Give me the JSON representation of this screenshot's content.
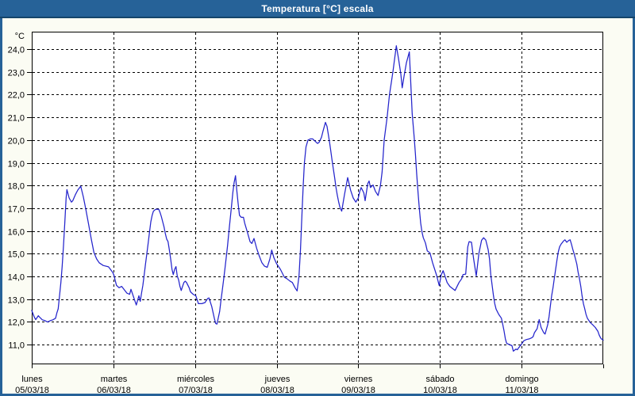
{
  "window": {
    "title": "Temperatura [°C] escala"
  },
  "colors": {
    "titlebar": "#266298",
    "titlebar_edge": "#15456b",
    "window_bg": "#fbfcf3",
    "plot_bg": "#ffffff",
    "frame": "#000000",
    "grid": "#000000",
    "line": "#2424cc",
    "text": "#000000",
    "title_text": "#ffffff"
  },
  "chart_data": {
    "type": "line",
    "title": "Temperatura [°C] escala",
    "ylabel": "°C",
    "grid": true,
    "legend_position": "none",
    "y_domain": [
      10.13,
      24.77
    ],
    "x_domain_hours": [
      0,
      168
    ],
    "hours_per_day": 24,
    "y_ticks": [
      {
        "v": 11,
        "label": "11,0"
      },
      {
        "v": 12,
        "label": "12,0"
      },
      {
        "v": 13,
        "label": "13,0"
      },
      {
        "v": 14,
        "label": "14,0"
      },
      {
        "v": 15,
        "label": "15,0"
      },
      {
        "v": 16,
        "label": "16,0"
      },
      {
        "v": 17,
        "label": "17,0"
      },
      {
        "v": 18,
        "label": "18,0"
      },
      {
        "v": 19,
        "label": "19,0"
      },
      {
        "v": 20,
        "label": "20,0"
      },
      {
        "v": 21,
        "label": "21,0"
      },
      {
        "v": 22,
        "label": "22,0"
      },
      {
        "v": 23,
        "label": "23,0"
      },
      {
        "v": 24,
        "label": "24,0"
      }
    ],
    "days": [
      {
        "name": "lunes",
        "date": "05/03/18"
      },
      {
        "name": "martes",
        "date": "06/03/18"
      },
      {
        "name": "miércoles",
        "date": "07/03/18"
      },
      {
        "name": "jueves",
        "date": "08/03/18"
      },
      {
        "name": "viernes",
        "date": "09/03/18"
      },
      {
        "name": "sábado",
        "date": "10/03/18"
      },
      {
        "name": "domingo",
        "date": "11/03/18"
      }
    ],
    "series": [
      {
        "name": "Temperatura",
        "unit": "°C",
        "points": [
          [
            0,
            12.5
          ],
          [
            0.77,
            12.2
          ],
          [
            1.17,
            12.1
          ],
          [
            1.94,
            12.27
          ],
          [
            2.33,
            12.2
          ],
          [
            3.1,
            12.09
          ],
          [
            3.9,
            12.05
          ],
          [
            4.67,
            11.99
          ],
          [
            5.44,
            12.05
          ],
          [
            6.23,
            12.09
          ],
          [
            7,
            12.16
          ],
          [
            7.4,
            12.4
          ],
          [
            7.77,
            12.57
          ],
          [
            8.17,
            13.15
          ],
          [
            8.56,
            13.73
          ],
          [
            8.94,
            14.43
          ],
          [
            9.33,
            15.36
          ],
          [
            9.73,
            16.4
          ],
          [
            10.1,
            17.45
          ],
          [
            10.34,
            17.82
          ],
          [
            11,
            17.45
          ],
          [
            11.67,
            17.27
          ],
          [
            12.06,
            17.33
          ],
          [
            12.83,
            17.6
          ],
          [
            13.53,
            17.8
          ],
          [
            14.4,
            17.97
          ],
          [
            15.17,
            17.5
          ],
          [
            15.94,
            16.92
          ],
          [
            16.73,
            16.28
          ],
          [
            17.5,
            15.64
          ],
          [
            18.27,
            15.06
          ],
          [
            19.06,
            14.77
          ],
          [
            19.83,
            14.6
          ],
          [
            21,
            14.48
          ],
          [
            22.56,
            14.42
          ],
          [
            23.72,
            14.19
          ],
          [
            24.11,
            14.08
          ],
          [
            24.9,
            13.61
          ],
          [
            25.67,
            13.5
          ],
          [
            26.44,
            13.56
          ],
          [
            28,
            13.26
          ],
          [
            28.77,
            13.21
          ],
          [
            29.17,
            13.43
          ],
          [
            30.73,
            12.74
          ],
          [
            31.5,
            13.15
          ],
          [
            31.9,
            12.9
          ],
          [
            32.27,
            13.26
          ],
          [
            32.67,
            13.61
          ],
          [
            33.06,
            14.08
          ],
          [
            33.44,
            14.54
          ],
          [
            33.83,
            15
          ],
          [
            34.23,
            15.47
          ],
          [
            34.6,
            15.93
          ],
          [
            35,
            16.4
          ],
          [
            35.39,
            16.69
          ],
          [
            35.77,
            16.87
          ],
          [
            36.4,
            16.95
          ],
          [
            37.33,
            16.95
          ],
          [
            37.73,
            16.81
          ],
          [
            38.1,
            16.63
          ],
          [
            38.5,
            16.4
          ],
          [
            38.9,
            16.17
          ],
          [
            39.27,
            15.88
          ],
          [
            39.67,
            15.64
          ],
          [
            40.06,
            15.53
          ],
          [
            40.44,
            15.18
          ],
          [
            40.83,
            14.77
          ],
          [
            41.23,
            14.31
          ],
          [
            41.6,
            14.08
          ],
          [
            42,
            14.31
          ],
          [
            42.4,
            14.43
          ],
          [
            42.77,
            14.02
          ],
          [
            43.17,
            13.85
          ],
          [
            43.56,
            13.56
          ],
          [
            43.93,
            13.38
          ],
          [
            44.33,
            13.56
          ],
          [
            44.72,
            13.73
          ],
          [
            45.1,
            13.79
          ],
          [
            45.5,
            13.73
          ],
          [
            46.27,
            13.5
          ],
          [
            46.67,
            13.32
          ],
          [
            47.43,
            13.21
          ],
          [
            48.23,
            13.15
          ],
          [
            49,
            12.8
          ],
          [
            50,
            12.8
          ],
          [
            50.94,
            12.85
          ],
          [
            51.73,
            13.03
          ],
          [
            52.1,
            13.05
          ],
          [
            52.9,
            12.68
          ],
          [
            53.67,
            12.16
          ],
          [
            54.06,
            11.93
          ],
          [
            54.44,
            11.9
          ],
          [
            55.23,
            12.45
          ],
          [
            55.6,
            12.92
          ],
          [
            56,
            13.38
          ],
          [
            56.4,
            13.85
          ],
          [
            56.77,
            14.31
          ],
          [
            57.17,
            14.83
          ],
          [
            57.56,
            15.36
          ],
          [
            57.94,
            15.94
          ],
          [
            58.33,
            16.52
          ],
          [
            58.73,
            17.1
          ],
          [
            59.1,
            17.68
          ],
          [
            59.5,
            18.14
          ],
          [
            59.9,
            18.43
          ],
          [
            60.27,
            17.79
          ],
          [
            60.67,
            17.21
          ],
          [
            61.06,
            16.69
          ],
          [
            61.6,
            16.6
          ],
          [
            62.23,
            16.6
          ],
          [
            62.6,
            16.34
          ],
          [
            63.4,
            15.94
          ],
          [
            64.17,
            15.53
          ],
          [
            64.7,
            15.45
          ],
          [
            65.33,
            15.67
          ],
          [
            66.1,
            15.24
          ],
          [
            66.9,
            14.89
          ],
          [
            67.67,
            14.6
          ],
          [
            68.44,
            14.45
          ],
          [
            69.23,
            14.4
          ],
          [
            70,
            14.77
          ],
          [
            70.54,
            15.16
          ],
          [
            71.17,
            14.83
          ],
          [
            71.94,
            14.57
          ],
          [
            72.33,
            14.48
          ],
          [
            73.1,
            14.31
          ],
          [
            74.27,
            13.96
          ],
          [
            75,
            13.9
          ],
          [
            75.83,
            13.8
          ],
          [
            76.6,
            13.73
          ],
          [
            77.4,
            13.5
          ],
          [
            78,
            13.36
          ],
          [
            78.56,
            14.02
          ],
          [
            79,
            15.2
          ],
          [
            79.44,
            16.8
          ],
          [
            79.8,
            18
          ],
          [
            80.15,
            19
          ],
          [
            80.62,
            19.7
          ],
          [
            81.2,
            20
          ],
          [
            81.9,
            20.05
          ],
          [
            82.6,
            20.05
          ],
          [
            83.3,
            19.95
          ],
          [
            84,
            19.85
          ],
          [
            84.47,
            19.9
          ],
          [
            85.17,
            20.12
          ],
          [
            85.63,
            20.4
          ],
          [
            86.33,
            20.78
          ],
          [
            86.8,
            20.6
          ],
          [
            87.5,
            19.95
          ],
          [
            87.9,
            19.53
          ],
          [
            88.27,
            19.12
          ],
          [
            88.67,
            18.72
          ],
          [
            89.06,
            18.32
          ],
          [
            89.44,
            17.91
          ],
          [
            89.83,
            17.56
          ],
          [
            90.23,
            17.27
          ],
          [
            90.6,
            17.04
          ],
          [
            91.12,
            16.87
          ],
          [
            91.93,
            17.6
          ],
          [
            92.87,
            18.35
          ],
          [
            93.73,
            17.79
          ],
          [
            94.5,
            17.45
          ],
          [
            95.27,
            17.27
          ],
          [
            96,
            17.45
          ],
          [
            96.44,
            17.75
          ],
          [
            96.83,
            17.91
          ],
          [
            97.6,
            17.68
          ],
          [
            98,
            17.33
          ],
          [
            98.77,
            18.08
          ],
          [
            99.17,
            18.2
          ],
          [
            99.56,
            17.91
          ],
          [
            100.33,
            18.02
          ],
          [
            101,
            17.75
          ],
          [
            101.8,
            17.56
          ],
          [
            102.5,
            18
          ],
          [
            103,
            18.6
          ],
          [
            103.6,
            20
          ],
          [
            104.46,
            21
          ],
          [
            105.16,
            22
          ],
          [
            106.17,
            23
          ],
          [
            107.17,
            24.15
          ],
          [
            107.8,
            23.6
          ],
          [
            108.5,
            22.9
          ],
          [
            108.9,
            22.3
          ],
          [
            109.43,
            22.8
          ],
          [
            110.13,
            23.4
          ],
          [
            111,
            23.88
          ],
          [
            111.84,
            21.16
          ],
          [
            112.4,
            20.17
          ],
          [
            112.77,
            19.42
          ],
          [
            113.17,
            18.49
          ],
          [
            113.56,
            17.68
          ],
          [
            113.94,
            16.98
          ],
          [
            114.33,
            16.34
          ],
          [
            114.73,
            15.94
          ],
          [
            115.1,
            15.7
          ],
          [
            115.73,
            15.47
          ],
          [
            116.27,
            15.12
          ],
          [
            117.06,
            15.03
          ],
          [
            117.83,
            14.6
          ],
          [
            119,
            14.05
          ],
          [
            119.77,
            13.6
          ],
          [
            120.4,
            14.08
          ],
          [
            120.94,
            14.25
          ],
          [
            122.1,
            13.73
          ],
          [
            122.9,
            13.56
          ],
          [
            124.44,
            13.38
          ],
          [
            125.6,
            13.73
          ],
          [
            126.39,
            13.9
          ],
          [
            126.77,
            14.08
          ],
          [
            127.56,
            14.1
          ],
          [
            128.17,
            15.3
          ],
          [
            128.56,
            15.53
          ],
          [
            129.27,
            15.5
          ],
          [
            129.9,
            14.77
          ],
          [
            130.67,
            14.02
          ],
          [
            131.44,
            15
          ],
          [
            132.23,
            15.59
          ],
          [
            132.84,
            15.7
          ],
          [
            133.47,
            15.6
          ],
          [
            134.17,
            15.18
          ],
          [
            134.56,
            14.77
          ],
          [
            134.94,
            14.08
          ],
          [
            135.33,
            13.61
          ],
          [
            135.73,
            13.15
          ],
          [
            136.1,
            12.8
          ],
          [
            136.5,
            12.56
          ],
          [
            137.27,
            12.33
          ],
          [
            138.06,
            12.16
          ],
          [
            138.44,
            11.9
          ],
          [
            138.83,
            11.6
          ],
          [
            139.23,
            11.25
          ],
          [
            139.6,
            11.05
          ],
          [
            140.4,
            11
          ],
          [
            141.17,
            10.95
          ],
          [
            141.56,
            10.71
          ],
          [
            142.33,
            10.8
          ],
          [
            142.73,
            10.77
          ],
          [
            143.1,
            10.85
          ],
          [
            143.9,
            11
          ],
          [
            144.67,
            11.17
          ],
          [
            145.44,
            11.22
          ],
          [
            146.22,
            11.25
          ],
          [
            147,
            11.3
          ],
          [
            147.4,
            11.35
          ],
          [
            147.77,
            11.52
          ],
          [
            148.56,
            11.7
          ],
          [
            149.17,
            12.1
          ],
          [
            149.73,
            11.75
          ],
          [
            150.5,
            11.52
          ],
          [
            150.9,
            11.46
          ],
          [
            151.67,
            11.87
          ],
          [
            152.06,
            12.22
          ],
          [
            152.44,
            12.68
          ],
          [
            152.83,
            13.15
          ],
          [
            153.23,
            13.5
          ],
          [
            153.6,
            13.9
          ],
          [
            154,
            14.31
          ],
          [
            154.4,
            14.72
          ],
          [
            154.77,
            15.07
          ],
          [
            155.17,
            15.3
          ],
          [
            155.56,
            15.41
          ],
          [
            156.33,
            15.56
          ],
          [
            156.73,
            15.61
          ],
          [
            157.27,
            15.5
          ],
          [
            157.9,
            15.59
          ],
          [
            158.27,
            15.61
          ],
          [
            158.67,
            15.41
          ],
          [
            159.06,
            15.18
          ],
          [
            159.44,
            15
          ],
          [
            159.83,
            14.77
          ],
          [
            160.23,
            14.54
          ],
          [
            160.6,
            14.19
          ],
          [
            161,
            13.9
          ],
          [
            161.4,
            13.56
          ],
          [
            161.77,
            13.15
          ],
          [
            162.17,
            12.8
          ],
          [
            162.56,
            12.57
          ],
          [
            162.94,
            12.33
          ],
          [
            163.33,
            12.16
          ],
          [
            164.1,
            11.98
          ],
          [
            164.9,
            11.87
          ],
          [
            165.67,
            11.75
          ],
          [
            166.44,
            11.58
          ],
          [
            166.83,
            11.41
          ],
          [
            167.23,
            11.29
          ],
          [
            167.6,
            11.23
          ],
          [
            168,
            11.2
          ]
        ]
      }
    ]
  }
}
